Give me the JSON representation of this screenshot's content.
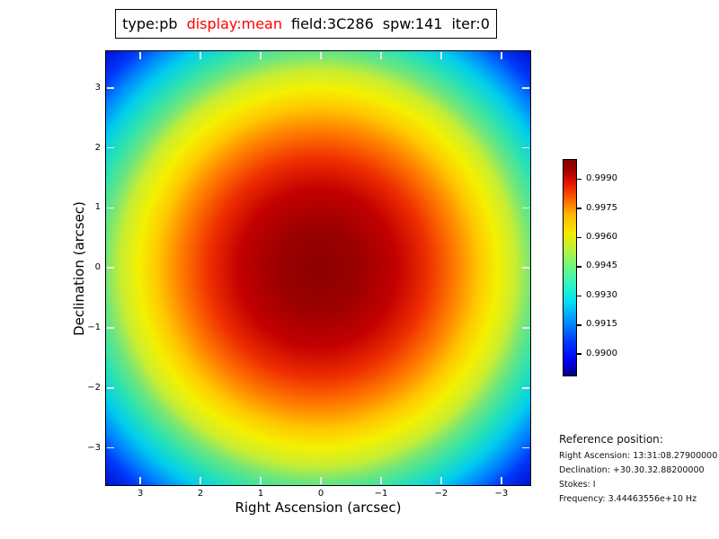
{
  "window": {
    "background": "#ffffff"
  },
  "title": {
    "segments": [
      {
        "text": "type:pb",
        "color": "#000000"
      },
      {
        "text": "display:mean",
        "color": "#ff0000"
      },
      {
        "text": "field:3C286",
        "color": "#000000"
      },
      {
        "text": "spw:141",
        "color": "#000000"
      },
      {
        "text": "iter:0",
        "color": "#000000"
      }
    ]
  },
  "chart_data": {
    "type": "heatmap",
    "title": "type:pb display:mean field:3C286 spw:141 iter:0",
    "xlabel": "Right Ascension (arcsec)",
    "ylabel": "Declination (arcsec)",
    "x_range": [
      3.57,
      -3.48
    ],
    "y_range": [
      3.61,
      -3.62
    ],
    "x_ticks": [
      {
        "v": 3,
        "label": "3"
      },
      {
        "v": 2,
        "label": "2"
      },
      {
        "v": 1,
        "label": "1"
      },
      {
        "v": 0,
        "label": "0"
      },
      {
        "v": -1,
        "label": "−1"
      },
      {
        "v": -2,
        "label": "−2"
      },
      {
        "v": -3,
        "label": "−3"
      }
    ],
    "y_ticks": [
      {
        "v": 3,
        "label": "3"
      },
      {
        "v": 2,
        "label": "2"
      },
      {
        "v": 1,
        "label": "1"
      },
      {
        "v": 0,
        "label": "0"
      },
      {
        "v": -1,
        "label": "−1"
      },
      {
        "v": -2,
        "label": "−2"
      },
      {
        "v": -3,
        "label": "−3"
      }
    ],
    "grid": false,
    "colormap": "jet",
    "legend_position": "colorbar-right",
    "colorbar": {
      "range": [
        0.9889,
        1.0
      ],
      "ticks": [
        {
          "v": 0.999,
          "label": "0.9990"
        },
        {
          "v": 0.9975,
          "label": "0.9975"
        },
        {
          "v": 0.996,
          "label": "0.9960"
        },
        {
          "v": 0.9945,
          "label": "0.9945"
        },
        {
          "v": 0.993,
          "label": "0.9930"
        },
        {
          "v": 0.9915,
          "label": "0.9915"
        },
        {
          "v": 0.99,
          "label": "0.9900"
        }
      ]
    },
    "radial_profile": {
      "description": "primary-beam response peaked at (0,0), decreasing radially",
      "radius_arcsec": [
        0,
        1,
        2,
        3,
        3.5,
        4.2,
        5.0
      ],
      "pb_value": [
        0.9995,
        0.9991,
        0.9978,
        0.9959,
        0.9945,
        0.9925,
        0.9895
      ]
    },
    "render": {
      "radial_stops": [
        "#8b0000 0%",
        "#9a0000 13%",
        "#c30000 26%",
        "#ee2e00 36%",
        "#ff7a00 45%",
        "#ffc800 53%",
        "#f4f000 59%",
        "#c8ee32 65%",
        "#74e678 70%",
        "#2ae2b2 76%",
        "#00cdee 82%",
        "#0080ff 88%",
        "#0038fa 93%",
        "#000fd0 100%"
      ],
      "jet_stops": [
        "#000085 0%",
        "#0000f5 7%",
        "#0033ff 15%",
        "#0099ff 26%",
        "#00e5f0 35%",
        "#2cf5c4 42%",
        "#7cf573 52%",
        "#c8f02c 60%",
        "#f5ec00 66%",
        "#ffb300 75%",
        "#ff5e00 82%",
        "#e81500 89%",
        "#a30000 95%",
        "#870000 100%"
      ],
      "tick_color": "#eeeeee"
    }
  },
  "reference": {
    "heading": "Reference position:",
    "lines": [
      "Right Ascension: 13:31:08.27900000",
      "Declination: +30.30.32.88200000",
      "Stokes: I",
      "Frequency: 3.44463556e+10 Hz"
    ]
  }
}
